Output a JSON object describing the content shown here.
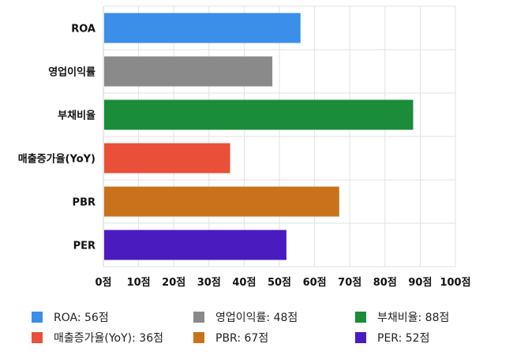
{
  "chart_data": {
    "type": "bar",
    "orientation": "horizontal",
    "categories": [
      "ROA",
      "영업이익률",
      "부채비율",
      "매출증가율(YoY)",
      "PBR",
      "PER"
    ],
    "values": [
      56,
      48,
      88,
      36,
      67,
      52
    ],
    "colors": [
      "#3b8fe8",
      "#8a8a8a",
      "#1a8c3a",
      "#ea4f3a",
      "#c8731c",
      "#4a1cc0"
    ],
    "xlim": [
      0,
      100
    ],
    "xticks": [
      "0점",
      "10점",
      "20점",
      "30점",
      "40점",
      "50점",
      "60점",
      "70점",
      "80점",
      "90점",
      "100점"
    ],
    "grid": true,
    "legend_position": "bottom",
    "legend": [
      {
        "label": "ROA: 56점",
        "color": "#3b8fe8"
      },
      {
        "label": "영업이익률: 48점",
        "color": "#8a8a8a"
      },
      {
        "label": "부채비율: 88점",
        "color": "#1a8c3a"
      },
      {
        "label": "매출증가율(YoY): 36점",
        "color": "#ea4f3a"
      },
      {
        "label": "PBR: 67점",
        "color": "#c8731c"
      },
      {
        "label": "PER: 52점",
        "color": "#4a1cc0"
      }
    ]
  }
}
